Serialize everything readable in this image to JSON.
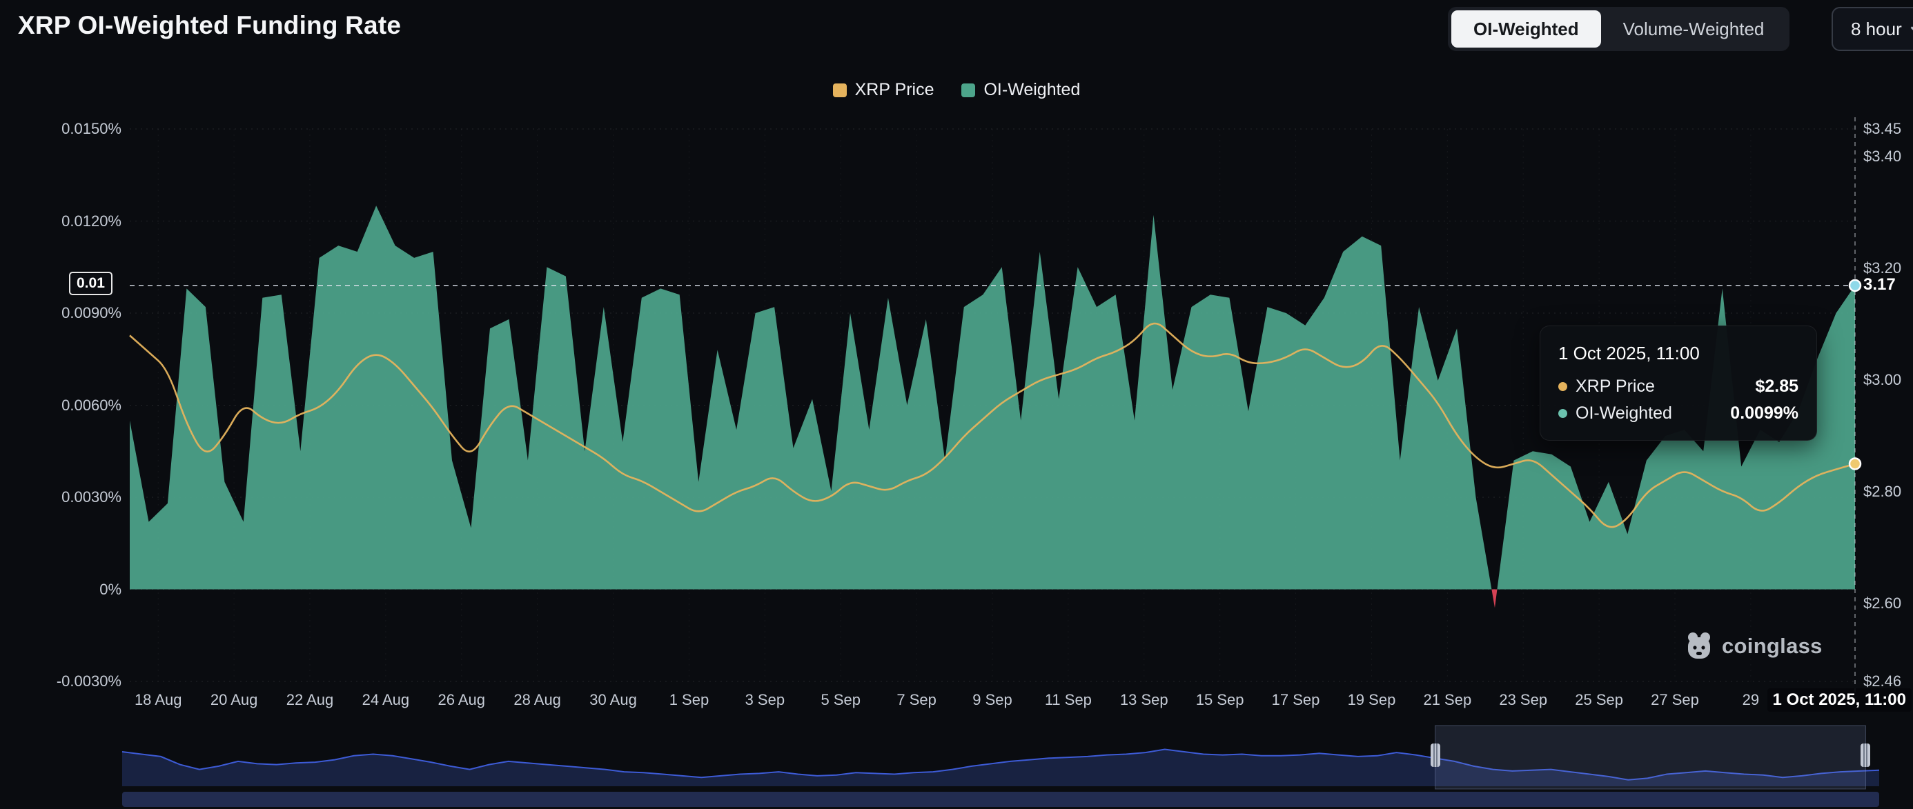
{
  "header": {
    "title": "XRP OI-Weighted Funding Rate",
    "toggle": {
      "options": [
        "OI-Weighted",
        "Volume-Weighted"
      ],
      "active": "OI-Weighted"
    },
    "interval": {
      "label": "8 hour"
    }
  },
  "legend": [
    {
      "label": "XRP Price",
      "color": "#E5B35D"
    },
    {
      "label": "OI-Weighted",
      "color": "#4DA58B"
    }
  ],
  "tooltip": {
    "title": "1 Oct 2025, 11:00",
    "rows": [
      {
        "label": "XRP Price",
        "value": "$2.85",
        "color": "#E5B35D"
      },
      {
        "label": "OI-Weighted",
        "value": "0.0099%",
        "color": "#6BC2AE"
      }
    ]
  },
  "crosshair": {
    "left_label": "0.01",
    "right_label": "3.17",
    "x_label": "1 Oct 2025, 11:00"
  },
  "watermark": {
    "text": "coinglass"
  },
  "colors": {
    "background": "#0A0C10",
    "panel": "#1B1E25",
    "oi_green": "#4DA58B",
    "negative_red": "#E0465A",
    "price_yellow": "#E5B35D",
    "navigator_blue": "#3D5BD6",
    "text_primary": "#FFFFFF",
    "text_secondary": "#C6CCD6"
  },
  "chart_data": {
    "type": "area",
    "title": "XRP OI-Weighted Funding Rate",
    "x_unit": "half-day steps, 17 Aug 2025 to 1 Oct 2025 11:00",
    "t_max": 91,
    "ylim_left": [
      -0.003,
      0.015
    ],
    "ylim_right": [
      2.46,
      3.45
    ],
    "grid": true,
    "legend_position": "top-center",
    "yticks_left": [
      {
        "v": 0.015,
        "label": "0.0150%"
      },
      {
        "v": 0.012,
        "label": "0.0120%"
      },
      {
        "v": 0.009,
        "label": "0.0090%"
      },
      {
        "v": 0.006,
        "label": "0.0060%"
      },
      {
        "v": 0.003,
        "label": "0.0030%"
      },
      {
        "v": 0,
        "label": "0%"
      },
      {
        "v": -0.003,
        "label": "-0.0030%"
      }
    ],
    "yticks_right": [
      {
        "v": 3.45,
        "label": "$3.45"
      },
      {
        "v": 3.4,
        "label": "$3.40"
      },
      {
        "v": 3.2,
        "label": "$3.20"
      },
      {
        "v": 3.0,
        "label": "$3.00"
      },
      {
        "v": 2.8,
        "label": "$2.80"
      },
      {
        "v": 2.6,
        "label": "$2.60"
      },
      {
        "v": 2.46,
        "label": "$2.46"
      }
    ],
    "xticks": [
      {
        "label": "18 Aug",
        "t": 1.5
      },
      {
        "label": "20 Aug",
        "t": 5.5
      },
      {
        "label": "22 Aug",
        "t": 9.5
      },
      {
        "label": "24 Aug",
        "t": 13.5
      },
      {
        "label": "26 Aug",
        "t": 17.5
      },
      {
        "label": "28 Aug",
        "t": 21.5
      },
      {
        "label": "30 Aug",
        "t": 25.5
      },
      {
        "label": "1 Sep",
        "t": 29.5
      },
      {
        "label": "3 Sep",
        "t": 33.5
      },
      {
        "label": "5 Sep",
        "t": 37.5
      },
      {
        "label": "7 Sep",
        "t": 41.5
      },
      {
        "label": "9 Sep",
        "t": 45.5
      },
      {
        "label": "11 Sep",
        "t": 49.5
      },
      {
        "label": "13 Sep",
        "t": 53.5
      },
      {
        "label": "15 Sep",
        "t": 57.5
      },
      {
        "label": "17 Sep",
        "t": 61.5
      },
      {
        "label": "19 Sep",
        "t": 65.5
      },
      {
        "label": "21 Sep",
        "t": 69.5
      },
      {
        "label": "23 Sep",
        "t": 73.5
      },
      {
        "label": "25 Sep",
        "t": 77.5
      },
      {
        "label": "27 Sep",
        "t": 81.5
      },
      {
        "label": "29",
        "t": 85.5
      }
    ],
    "series": [
      {
        "name": "OI-Weighted",
        "type": "area",
        "axis": "left",
        "unit": "%",
        "color": "#4DA58B",
        "negative_color": "#E0465A",
        "values": [
          0.0055,
          0.0022,
          0.0028,
          0.0098,
          0.0092,
          0.0035,
          0.0022,
          0.0095,
          0.0096,
          0.0045,
          0.0108,
          0.0112,
          0.011,
          0.0125,
          0.0112,
          0.0108,
          0.011,
          0.0042,
          0.002,
          0.0085,
          0.0088,
          0.0042,
          0.0105,
          0.0102,
          0.0045,
          0.0092,
          0.0048,
          0.0095,
          0.0098,
          0.0096,
          0.0035,
          0.0078,
          0.0052,
          0.009,
          0.0092,
          0.0046,
          0.0062,
          0.0032,
          0.009,
          0.0052,
          0.0095,
          0.006,
          0.0088,
          0.0042,
          0.0092,
          0.0096,
          0.0105,
          0.0055,
          0.011,
          0.0062,
          0.0105,
          0.0092,
          0.0096,
          0.0055,
          0.0122,
          0.0065,
          0.0092,
          0.0096,
          0.0095,
          0.0058,
          0.0092,
          0.009,
          0.0086,
          0.0095,
          0.011,
          0.0115,
          0.0112,
          0.0042,
          0.0092,
          0.0068,
          0.0085,
          0.003,
          -0.0006,
          0.0042,
          0.0045,
          0.0044,
          0.004,
          0.0022,
          0.0035,
          0.0018,
          0.0042,
          0.005,
          0.0052,
          0.0045,
          0.0098,
          0.004,
          0.0052,
          0.0048,
          0.0058,
          0.0075,
          0.009,
          0.0099
        ]
      },
      {
        "name": "XRP Price",
        "type": "line",
        "axis": "right",
        "unit": "$",
        "color": "#E5B35D",
        "values": [
          3.08,
          3.05,
          3.02,
          2.92,
          2.86,
          2.9,
          2.96,
          2.93,
          2.92,
          2.94,
          2.95,
          2.98,
          3.03,
          3.05,
          3.03,
          2.99,
          2.95,
          2.9,
          2.86,
          2.92,
          2.96,
          2.94,
          2.92,
          2.9,
          2.88,
          2.86,
          2.83,
          2.82,
          2.8,
          2.78,
          2.76,
          2.78,
          2.8,
          2.81,
          2.83,
          2.8,
          2.78,
          2.79,
          2.82,
          2.81,
          2.8,
          2.82,
          2.83,
          2.86,
          2.9,
          2.93,
          2.96,
          2.98,
          3.0,
          3.01,
          3.02,
          3.04,
          3.05,
          3.07,
          3.11,
          3.08,
          3.05,
          3.04,
          3.05,
          3.03,
          3.03,
          3.04,
          3.06,
          3.04,
          3.02,
          3.03,
          3.07,
          3.04,
          3.0,
          2.96,
          2.9,
          2.86,
          2.84,
          2.85,
          2.86,
          2.83,
          2.8,
          2.77,
          2.73,
          2.75,
          2.8,
          2.82,
          2.84,
          2.82,
          2.8,
          2.79,
          2.76,
          2.78,
          2.81,
          2.83,
          2.84,
          2.85
        ]
      }
    ],
    "current": {
      "oi_weighted": 0.0099,
      "xrp_price": 2.85
    },
    "navigator": {
      "window": [
        68,
        90.3
      ]
    }
  }
}
